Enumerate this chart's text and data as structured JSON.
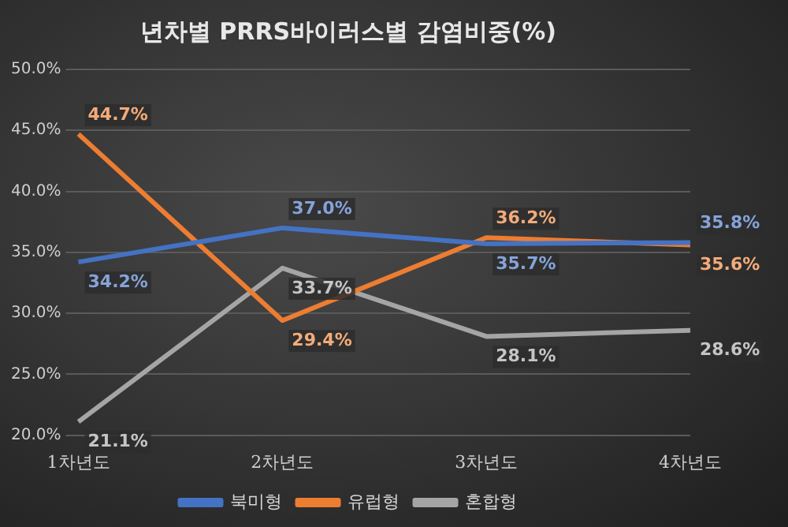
{
  "chart_data": {
    "type": "line",
    "title": "년차별 PRRS바이러스별 감염비중(%)",
    "categories": [
      "1차년도",
      "2차년도",
      "3차년도",
      "4차년도"
    ],
    "series": [
      {
        "name": "북미형",
        "color": "#4472c4",
        "values": [
          34.2,
          37.0,
          35.7,
          35.8
        ],
        "value_labels": [
          "34.2%",
          "37.0%",
          "35.7%",
          "35.8%"
        ]
      },
      {
        "name": "유럽형",
        "color": "#ed7d31",
        "values": [
          44.7,
          29.4,
          36.2,
          35.6
        ],
        "value_labels": [
          "44.7%",
          "29.4%",
          "36.2%",
          "35.6%"
        ]
      },
      {
        "name": "혼합형",
        "color": "#a5a5a5",
        "values": [
          21.1,
          33.7,
          28.1,
          28.6
        ],
        "value_labels": [
          "21.1%",
          "33.7%",
          "28.1%",
          "28.6%"
        ]
      }
    ],
    "ylim": [
      20,
      50
    ],
    "yticks": [
      {
        "value": 20,
        "label": "20.0%"
      },
      {
        "value": 25,
        "label": "25.0%"
      },
      {
        "value": 30,
        "label": "30.0%"
      },
      {
        "value": 35,
        "label": "35.0%"
      },
      {
        "value": 40,
        "label": "40.0%"
      },
      {
        "value": 45,
        "label": "45.0%"
      },
      {
        "value": 50,
        "label": "50.0%"
      }
    ],
    "grid": "y",
    "legend": "bottom",
    "marker": "none",
    "line_style": "solid"
  }
}
